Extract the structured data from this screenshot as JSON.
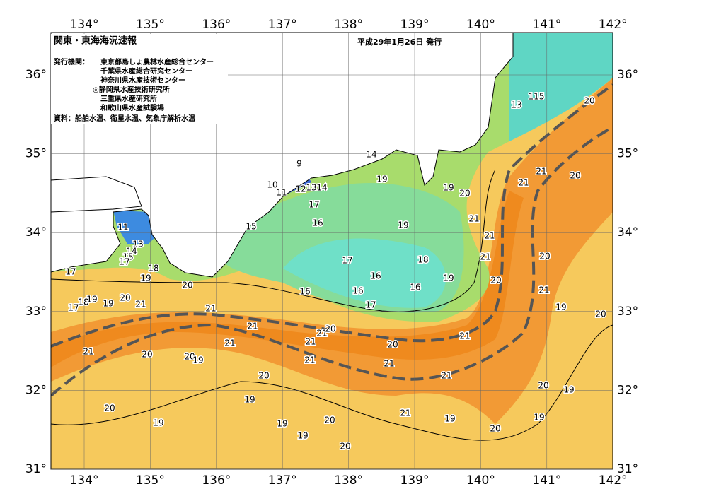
{
  "header": {
    "title": "関東・東海海況速報",
    "date": "平成29年1月26日 発行",
    "issuer_label": "発行機関：",
    "issuers": [
      "東京都島しょ農林水産総合センター",
      "千葉県水産総合研究センター",
      "神奈川県水産技術センター",
      "◎静岡県水産技術研究所",
      "三重県水産研究所",
      "和歌山県水産試験場"
    ],
    "source": "資料：船舶水温、衛星水温、気象庁解析水温"
  },
  "axes": {
    "top": [
      "134°",
      "135°",
      "136°",
      "137°",
      "138°",
      "139°",
      "140°",
      "141°",
      "142°"
    ],
    "bottom": [
      "134°",
      "135°",
      "136°",
      "137°",
      "138°",
      "139°",
      "140°",
      "141°",
      "142°"
    ],
    "left": [
      "36°",
      "35°",
      "34°",
      "33°",
      "32°",
      "31°"
    ],
    "right": [
      "36°",
      "35°",
      "34°",
      "33°",
      "32°",
      "31°"
    ]
  },
  "contour_labels": [
    "9",
    "10",
    "11",
    "12",
    "13",
    "14",
    "14",
    "19",
    "19",
    "20",
    "21",
    "21",
    "20",
    "20",
    "13",
    "115",
    "17",
    "15",
    "16",
    "19",
    "21",
    "21",
    "20",
    "21",
    "18",
    "17",
    "16",
    "19",
    "20",
    "21",
    "16",
    "16",
    "16",
    "17",
    "19",
    "20",
    "11",
    "13",
    "14",
    "15",
    "17",
    "18",
    "19",
    "17",
    "20",
    "21",
    "20",
    "21",
    "19",
    "17",
    "18",
    "19",
    "21",
    "21",
    "21",
    "21",
    "20",
    "20",
    "21",
    "21",
    "21",
    "21",
    "20",
    "20",
    "21",
    "20",
    "19",
    "19",
    "20",
    "19",
    "19",
    "19",
    "20",
    "20",
    "21",
    "19",
    "20",
    "19",
    "20",
    "19"
  ]
}
